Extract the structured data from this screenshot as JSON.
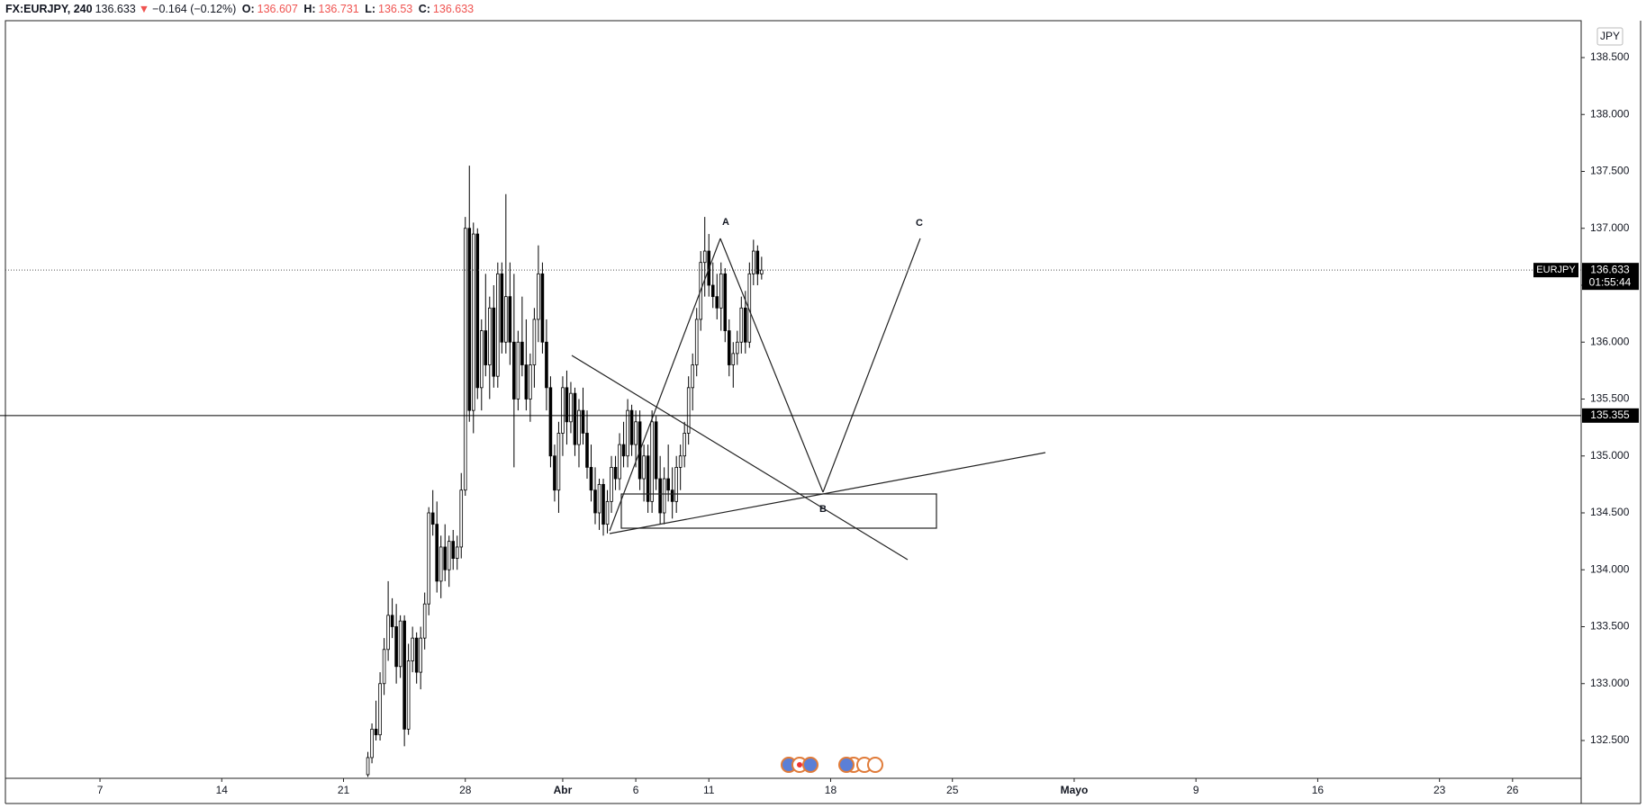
{
  "header": {
    "symbol": "FX:EURJPY, 240",
    "price": 136.633,
    "arrow": "▼",
    "change": "−0.164 (−0.12%)",
    "open_label": "O:",
    "open": 136.607,
    "high_label": "H:",
    "high": 136.731,
    "low_label": "L:",
    "low": 136.53,
    "close_label": "C:",
    "close": 136.633
  },
  "chart_data": {
    "type": "candlestick",
    "x": [
      66,
      67,
      68,
      69,
      70,
      71,
      72,
      73,
      74,
      75,
      76,
      77,
      78,
      79,
      80,
      81,
      82,
      83,
      84,
      85,
      86,
      87,
      88,
      89,
      90,
      91,
      92,
      93,
      94,
      95,
      96,
      97,
      98,
      99,
      100,
      101,
      102,
      103,
      104,
      105,
      106,
      107,
      108,
      109,
      110,
      111,
      112,
      113,
      114,
      115,
      116,
      117,
      118,
      119,
      120,
      121,
      122,
      123,
      124,
      125,
      126,
      127,
      128,
      129,
      130,
      131,
      132,
      133,
      134,
      135,
      136,
      137,
      138,
      139,
      140,
      141,
      142,
      143,
      144,
      145,
      146,
      147,
      148,
      149,
      150,
      151,
      152,
      153,
      154,
      155,
      156,
      157,
      158,
      159,
      160,
      161,
      162,
      163
    ],
    "open": [
      132.2,
      132.35,
      132.6,
      132.55,
      133.0,
      133.3,
      133.6,
      133.5,
      133.15,
      133.55,
      132.6,
      133.2,
      133.4,
      133.1,
      133.4,
      133.7,
      134.5,
      134.4,
      133.9,
      134.2,
      134.0,
      134.25,
      134.1,
      134.2,
      134.7,
      137.0,
      135.4,
      136.95,
      135.6,
      136.1,
      135.8,
      136.3,
      135.7,
      136.6,
      136.0,
      136.4,
      136.0,
      135.5,
      136.0,
      135.8,
      135.5,
      135.8,
      136.2,
      136.6,
      136.0,
      135.6,
      135.0,
      134.7,
      135.2,
      135.6,
      135.3,
      135.55,
      135.1,
      135.4,
      135.2,
      134.9,
      134.7,
      134.5,
      134.75,
      134.4,
      134.6,
      134.9,
      134.8,
      135.1,
      135.0,
      135.4,
      135.1,
      135.3,
      134.8,
      135.0,
      134.6,
      135.3,
      134.8,
      134.5,
      134.8,
      134.7,
      134.6,
      134.9,
      135.0,
      135.2,
      135.6,
      135.8,
      136.2,
      136.7,
      136.8,
      136.5,
      136.4,
      136.3,
      136.6,
      136.1,
      135.8,
      135.9,
      136.0,
      136.3,
      136.0,
      136.6,
      136.8,
      136.6
    ],
    "high": [
      132.4,
      132.65,
      132.85,
      133.1,
      133.4,
      133.9,
      133.75,
      133.7,
      133.6,
      133.6,
      133.35,
      133.5,
      133.45,
      133.5,
      133.8,
      134.55,
      134.7,
      134.6,
      134.3,
      134.4,
      134.3,
      134.35,
      134.3,
      134.85,
      137.1,
      137.55,
      137.05,
      137.0,
      136.2,
      136.6,
      136.4,
      136.5,
      136.7,
      136.7,
      137.3,
      136.7,
      136.6,
      136.1,
      136.4,
      136.2,
      135.9,
      136.3,
      136.85,
      136.7,
      136.2,
      135.7,
      135.1,
      135.3,
      135.7,
      135.75,
      135.65,
      135.6,
      135.5,
      135.6,
      135.4,
      135.1,
      134.9,
      134.8,
      134.8,
      134.7,
      135.0,
      135.0,
      135.2,
      135.3,
      135.5,
      135.45,
      135.4,
      135.4,
      135.1,
      135.1,
      135.4,
      135.35,
      135.0,
      134.9,
      135.1,
      134.9,
      135.0,
      135.1,
      135.3,
      135.7,
      135.9,
      136.3,
      136.8,
      137.1,
      136.95,
      136.7,
      136.6,
      136.7,
      136.65,
      136.2,
      136.0,
      136.1,
      136.4,
      136.45,
      136.7,
      136.9,
      136.85,
      136.75
    ],
    "low": [
      132.18,
      132.3,
      132.5,
      132.5,
      132.9,
      133.2,
      133.4,
      133.0,
      133.05,
      132.45,
      132.55,
      133.1,
      133.0,
      132.95,
      133.3,
      133.6,
      134.3,
      133.8,
      133.75,
      133.9,
      133.85,
      134.0,
      134.0,
      134.1,
      134.65,
      135.3,
      135.2,
      135.5,
      135.4,
      135.7,
      135.5,
      135.6,
      135.6,
      135.9,
      135.9,
      135.8,
      134.9,
      135.4,
      135.7,
      135.4,
      135.3,
      135.6,
      136.0,
      135.9,
      135.4,
      134.9,
      134.6,
      134.5,
      135.0,
      135.1,
      135.2,
      135.0,
      134.9,
      135.1,
      134.8,
      134.6,
      134.4,
      134.35,
      134.3,
      134.32,
      134.5,
      134.7,
      134.7,
      134.9,
      134.9,
      135.0,
      134.9,
      134.7,
      134.6,
      134.5,
      134.5,
      134.7,
      134.4,
      134.4,
      134.6,
      134.45,
      134.5,
      134.7,
      134.9,
      135.1,
      135.4,
      135.7,
      136.1,
      136.4,
      136.4,
      136.3,
      136.2,
      136.1,
      136.0,
      135.7,
      135.6,
      135.8,
      135.9,
      135.9,
      135.95,
      136.5,
      136.5,
      136.55
    ],
    "close": [
      132.35,
      132.6,
      132.55,
      133.0,
      133.3,
      133.6,
      133.5,
      133.15,
      133.55,
      132.6,
      133.2,
      133.4,
      133.1,
      133.4,
      133.7,
      134.5,
      134.4,
      133.9,
      134.2,
      134.0,
      134.25,
      134.1,
      134.2,
      134.7,
      137.0,
      135.4,
      136.95,
      135.6,
      136.1,
      135.8,
      136.3,
      135.7,
      136.6,
      136.0,
      136.4,
      136.0,
      135.5,
      136.0,
      135.8,
      135.5,
      135.8,
      136.2,
      136.6,
      136.0,
      135.6,
      135.0,
      134.7,
      135.2,
      135.6,
      135.3,
      135.55,
      135.1,
      135.4,
      135.2,
      134.9,
      134.7,
      134.5,
      134.75,
      134.4,
      134.6,
      134.9,
      134.8,
      135.1,
      135.0,
      135.4,
      135.1,
      135.3,
      134.8,
      135.0,
      134.6,
      135.3,
      134.8,
      134.5,
      134.8,
      134.7,
      134.6,
      134.9,
      135.0,
      135.2,
      135.6,
      135.8,
      136.2,
      136.7,
      136.8,
      136.5,
      136.4,
      136.3,
      136.6,
      136.1,
      135.8,
      135.9,
      136.0,
      136.3,
      136.0,
      136.6,
      136.8,
      136.6,
      136.633
    ],
    "up_color": "#ffffff",
    "down_color": "#000000",
    "wick_color": "#000000",
    "xlim": [
      -23.3,
      364.9
    ],
    "ylim": [
      132.168,
      138.824
    ],
    "xticks": [
      {
        "value": 0,
        "label": "7"
      },
      {
        "value": 30,
        "label": "14"
      },
      {
        "value": 60,
        "label": "21"
      },
      {
        "value": 90,
        "label": "28"
      },
      {
        "value": 114,
        "label": "Abr"
      },
      {
        "value": 132,
        "label": "6"
      },
      {
        "value": 150,
        "label": "11"
      },
      {
        "value": 180,
        "label": "18"
      },
      {
        "value": 210,
        "label": "25"
      },
      {
        "value": 240,
        "label": "Mayo"
      },
      {
        "value": 270,
        "label": "9"
      },
      {
        "value": 300,
        "label": "16"
      },
      {
        "value": 330,
        "label": "23"
      },
      {
        "value": 348,
        "label": "26"
      }
    ],
    "yticks": [
      {
        "value": 132.5,
        "label": "132.500"
      },
      {
        "value": 133,
        "label": "133.000"
      },
      {
        "value": 133.5,
        "label": "133.500"
      },
      {
        "value": 134,
        "label": "134.000"
      },
      {
        "value": 134.5,
        "label": "134.500"
      },
      {
        "value": 135,
        "label": "135.000"
      },
      {
        "value": 135.5,
        "label": "135.500"
      },
      {
        "value": 136,
        "label": "136.000"
      },
      {
        "value": 136.5,
        "label": "136.500"
      },
      {
        "value": 137,
        "label": "137.000"
      },
      {
        "value": 137.5,
        "label": "137.500"
      },
      {
        "value": 138,
        "label": "138.000"
      },
      {
        "value": 138.5,
        "label": "138.500"
      }
    ],
    "price_lines": [
      {
        "value": 136.633,
        "style": "dotted",
        "color": "#555555"
      },
      {
        "value": 135.355,
        "style": "solid",
        "color": "#000000"
      }
    ],
    "currency": "JPY",
    "symbol_tag": "EURJPY",
    "countdown": "01:55:44",
    "annotations": [
      "A",
      "B",
      "C"
    ]
  }
}
